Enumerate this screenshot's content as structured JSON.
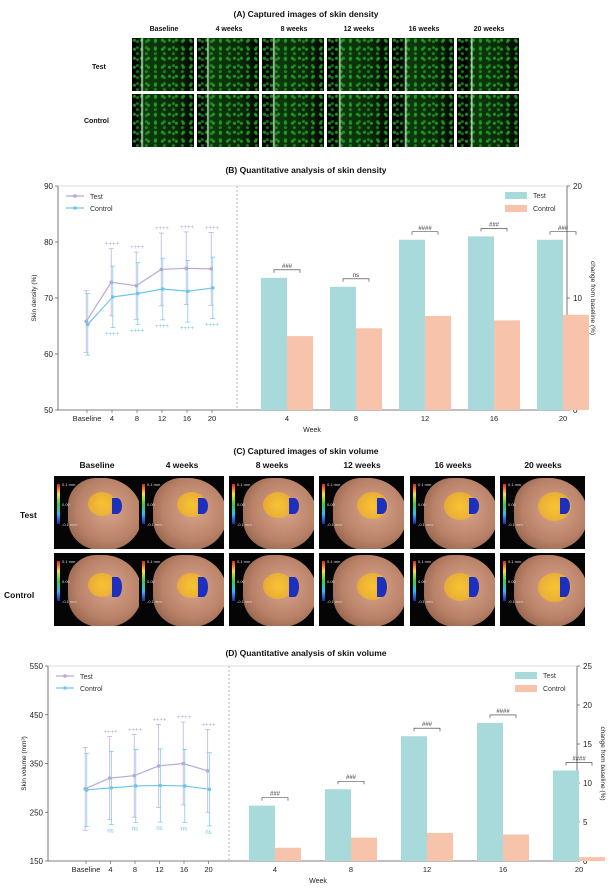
{
  "panel_a": {
    "title": "(A) Captured images of skin density",
    "columns": [
      "Baseline",
      "4 weeks",
      "8 weeks",
      "12 weeks",
      "16 weeks",
      "20 weeks"
    ],
    "rows": [
      "Test",
      "Control"
    ]
  },
  "panel_c": {
    "title": "(C) Captured images of skin volume",
    "columns": [
      "Baseline",
      "4 weeks",
      "8 weeks",
      "12 weeks",
      "16 weeks",
      "20 weeks"
    ],
    "rows": [
      "Test",
      "Control"
    ],
    "colorbar_labels": [
      "0.1 mm",
      "0.00",
      "-0.1 mm"
    ]
  },
  "colors": {
    "test_line": "#b9a8d6",
    "control_line": "#6ec6ea",
    "test_bar": "#a8dadc",
    "control_bar": "#f7c4ab"
  },
  "chart_data": [
    {
      "id": "B",
      "title": "(B) Quantitative analysis of skin density",
      "xlabel": "Week",
      "left": {
        "type": "line",
        "ylabel": "Skin density (%)",
        "ylim": [
          50,
          90
        ],
        "yticks": [
          50,
          60,
          70,
          80,
          90
        ],
        "categories": [
          "Baseline",
          "4",
          "8",
          "12",
          "16",
          "20"
        ],
        "series": [
          {
            "name": "Test",
            "values": [
              65.8,
              72.8,
              72.2,
              75.1,
              75.3,
              75.2
            ],
            "error": [
              5.5,
              6.0,
              6.0,
              6.5,
              6.5,
              6.5
            ]
          },
          {
            "name": "Control",
            "values": [
              65.3,
              70.2,
              70.8,
              71.6,
              71.2,
              71.8
            ],
            "error": [
              5.5,
              5.5,
              5.5,
              5.5,
              5.5,
              5.5
            ]
          }
        ],
        "test_annotations": [
          "",
          "++++",
          "++++",
          "++++",
          "++++",
          "++++"
        ],
        "control_annotations": [
          "",
          "++++",
          "++++",
          "++++",
          "++++",
          "++++"
        ]
      },
      "right": {
        "type": "bar",
        "ylabel": "change from baseline (%)",
        "ylim": [
          0,
          20
        ],
        "yticks": [
          0,
          10,
          20
        ],
        "categories": [
          "4",
          "8",
          "12",
          "16",
          "20"
        ],
        "series": [
          {
            "name": "Test",
            "values": [
              11.8,
              11.0,
              15.2,
              15.5,
              15.2
            ]
          },
          {
            "name": "Control",
            "values": [
              6.6,
              7.3,
              8.4,
              8.0,
              8.5
            ]
          }
        ],
        "significance": [
          "###",
          "ns",
          "####",
          "###",
          "###"
        ]
      }
    },
    {
      "id": "D",
      "title": "(D) Quantitative analysis of skin volume",
      "xlabel": "Week",
      "left": {
        "type": "line",
        "ylabel": "Skin volume (mm³)",
        "ylim": [
          150,
          550
        ],
        "yticks": [
          150,
          250,
          350,
          450,
          550
        ],
        "categories": [
          "Baseline",
          "4",
          "8",
          "12",
          "16",
          "20"
        ],
        "series": [
          {
            "name": "Test",
            "values": [
              298,
              320,
              325,
              345,
              350,
              335
            ],
            "error": [
              85,
              85,
              85,
              85,
              85,
              85
            ]
          },
          {
            "name": "Control",
            "values": [
              296,
              300,
              304,
              305,
              304,
              297
            ],
            "error": [
              75,
              75,
              75,
              75,
              75,
              75
            ]
          }
        ],
        "test_annotations": [
          "",
          "++++",
          "++++",
          "++++",
          "++++",
          "++++"
        ],
        "control_annotations": [
          "",
          "ns",
          "ns",
          "ns",
          "ns",
          "ns"
        ]
      },
      "right": {
        "type": "bar",
        "ylabel": "change from baseline (%)",
        "ylim": [
          0,
          25
        ],
        "yticks": [
          0,
          5,
          10,
          15,
          20,
          25
        ],
        "categories": [
          "4",
          "8",
          "12",
          "16",
          "20"
        ],
        "series": [
          {
            "name": "Test",
            "values": [
              7.1,
              9.2,
              16.0,
              17.7,
              11.6
            ]
          },
          {
            "name": "Control",
            "values": [
              1.7,
              3.0,
              3.6,
              3.4,
              0.5
            ]
          }
        ],
        "significance": [
          "###",
          "###",
          "###",
          "####",
          "####"
        ]
      }
    }
  ]
}
